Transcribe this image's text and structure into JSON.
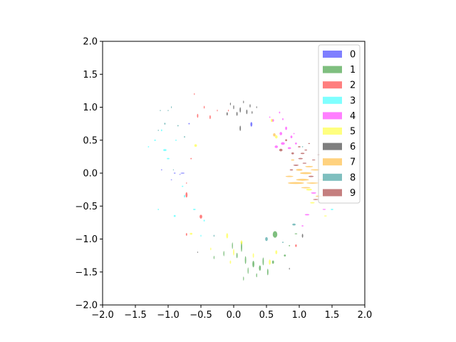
{
  "chart_data": {
    "type": "scatter",
    "title": "",
    "xlabel": "",
    "ylabel": "",
    "xlim": [
      -2.0,
      2.0
    ],
    "ylim": [
      -2.0,
      2.0
    ],
    "x_ticks": [
      "−2.0",
      "−1.5",
      "−1.0",
      "−0.5",
      "0.0",
      "0.5",
      "1.0",
      "1.5",
      "2.0"
    ],
    "y_ticks": [
      "−2.0",
      "−1.5",
      "−1.0",
      "−0.5",
      "0.0",
      "0.5",
      "1.0",
      "1.5",
      "2.0"
    ],
    "grid": false,
    "legend_position": "top-right",
    "marker": "ellipse",
    "alpha": 0.5,
    "series": [
      {
        "name": "0",
        "color": "#0000ff",
        "points": [
          [
            0.27,
            0.74,
            0.03,
            0.07
          ],
          [
            -0.78,
            0.0,
            0.06,
            0.01
          ],
          [
            -0.9,
            0.0,
            0.03,
            0.01
          ],
          [
            -0.82,
            -0.02,
            0.02,
            0.01
          ],
          [
            -0.68,
            0.75,
            0.02,
            0.02
          ],
          [
            -0.95,
            -0.1,
            0.02,
            0.01
          ],
          [
            -1.1,
            0.05,
            0.02,
            0.01
          ]
        ]
      },
      {
        "name": "1",
        "color": "#008000",
        "points": [
          [
            0.63,
            -0.93,
            0.07,
            0.1
          ],
          [
            0.12,
            -1.12,
            0.02,
            0.15
          ],
          [
            0.18,
            -1.32,
            0.02,
            0.12
          ],
          [
            0.3,
            -1.38,
            0.03,
            0.1
          ],
          [
            0.4,
            -1.44,
            0.03,
            0.08
          ],
          [
            0.45,
            -1.34,
            0.02,
            0.12
          ],
          [
            0.22,
            -1.48,
            0.015,
            0.1
          ],
          [
            -0.02,
            -1.1,
            0.015,
            0.1
          ],
          [
            0.6,
            -1.35,
            0.03,
            0.05
          ],
          [
            0.95,
            -0.92,
            0.04,
            0.01
          ],
          [
            0.85,
            -1.1,
            0.02,
            0.02
          ],
          [
            0.78,
            -1.25,
            0.03,
            0.03
          ],
          [
            0.05,
            -1.25,
            0.02,
            0.08
          ],
          [
            0.52,
            -1.5,
            0.02,
            0.1
          ],
          [
            -0.15,
            -1.22,
            0.015,
            0.08
          ],
          [
            0.35,
            -1.55,
            0.015,
            0.06
          ],
          [
            -0.3,
            -1.28,
            0.01,
            0.05
          ],
          [
            0.15,
            -1.6,
            0.01,
            0.06
          ]
        ]
      },
      {
        "name": "2",
        "color": "#ff0000",
        "points": [
          [
            -0.72,
            -0.33,
            0.03,
            0.08
          ],
          [
            -0.5,
            -0.66,
            0.04,
            0.06
          ],
          [
            -0.72,
            -0.93,
            0.02,
            0.04
          ],
          [
            -0.55,
            0.87,
            0.02,
            0.06
          ],
          [
            -0.36,
            0.85,
            0.02,
            0.06
          ],
          [
            -0.45,
            1.0,
            0.015,
            0.04
          ],
          [
            -0.65,
            0.22,
            0.02,
            0.02
          ],
          [
            0.95,
            -1.1,
            0.025,
            0.04
          ],
          [
            -0.25,
            0.95,
            0.01,
            0.03
          ],
          [
            -0.08,
            0.95,
            0.01,
            0.03
          ],
          [
            -0.6,
            1.2,
            0.01,
            0.03
          ],
          [
            -0.72,
            -0.15,
            0.015,
            0.02
          ]
        ]
      },
      {
        "name": "3",
        "color": "#00ffff",
        "points": [
          [
            -1.05,
            0.35,
            0.05,
            0.03
          ],
          [
            -1.2,
            0.5,
            0.03,
            0.02
          ],
          [
            -1.0,
            0.22,
            0.04,
            0.02
          ],
          [
            -1.3,
            0.4,
            0.02,
            0.02
          ],
          [
            -0.9,
            -0.65,
            0.03,
            0.03
          ],
          [
            -0.75,
            -0.35,
            0.02,
            0.04
          ],
          [
            -0.6,
            -0.55,
            0.04,
            0.02
          ],
          [
            -0.45,
            -0.72,
            0.02,
            0.03
          ],
          [
            -0.88,
            0.5,
            0.02,
            0.02
          ],
          [
            1.5,
            -0.55,
            0.04,
            0.02
          ],
          [
            -1.1,
            0.65,
            0.02,
            0.03
          ],
          [
            -0.78,
            -0.2,
            0.025,
            0.02
          ],
          [
            -1.15,
            -0.55,
            0.02,
            0.02
          ],
          [
            -0.5,
            -0.95,
            0.015,
            0.03
          ]
        ]
      },
      {
        "name": "4",
        "color": "#ff00ff",
        "points": [
          [
            0.75,
            0.45,
            0.06,
            0.04
          ],
          [
            0.85,
            0.38,
            0.05,
            0.03
          ],
          [
            0.72,
            0.6,
            0.04,
            0.05
          ],
          [
            0.65,
            0.4,
            0.05,
            0.04
          ],
          [
            0.8,
            0.68,
            0.03,
            0.05
          ],
          [
            0.88,
            0.55,
            0.03,
            0.04
          ],
          [
            0.95,
            0.45,
            0.03,
            0.03
          ],
          [
            1.12,
            -0.63,
            0.07,
            0.02
          ],
          [
            1.22,
            -0.3,
            0.08,
            0.02
          ],
          [
            0.6,
            0.8,
            0.03,
            0.04
          ],
          [
            0.75,
            0.82,
            0.02,
            0.03
          ],
          [
            0.7,
            0.92,
            0.02,
            0.03
          ],
          [
            1.05,
            -0.8,
            0.03,
            0.02
          ],
          [
            0.55,
            0.85,
            0.02,
            0.02
          ],
          [
            0.92,
            0.6,
            0.02,
            0.02
          ],
          [
            1.38,
            -0.55,
            0.05,
            0.015
          ]
        ]
      },
      {
        "name": "5",
        "color": "#ffff00",
        "points": [
          [
            -0.58,
            0.42,
            0.04,
            0.04
          ],
          [
            -0.1,
            -0.95,
            0.03,
            0.08
          ],
          [
            0.0,
            -1.2,
            0.02,
            0.1
          ],
          [
            0.12,
            -1.05,
            0.03,
            0.06
          ],
          [
            -0.65,
            -0.92,
            0.04,
            0.03
          ],
          [
            0.55,
            -1.35,
            0.03,
            0.08
          ],
          [
            0.65,
            -1.2,
            0.03,
            0.06
          ],
          [
            0.58,
            0.8,
            0.03,
            0.05
          ],
          [
            0.65,
            0.55,
            0.04,
            0.05
          ],
          [
            1.15,
            -0.25,
            0.09,
            0.03
          ],
          [
            1.2,
            -0.45,
            0.07,
            0.02
          ],
          [
            -0.05,
            -1.35,
            0.02,
            0.05
          ],
          [
            0.3,
            -1.25,
            0.02,
            0.07
          ],
          [
            -0.35,
            -1.15,
            0.015,
            0.04
          ],
          [
            1.4,
            -0.65,
            0.04,
            0.015
          ]
        ]
      },
      {
        "name": "6",
        "color": "#000000",
        "points": [
          [
            0.1,
            0.96,
            0.02,
            0.08
          ],
          [
            0.2,
            0.93,
            0.02,
            0.07
          ],
          [
            0.05,
            0.9,
            0.02,
            0.06
          ],
          [
            0.0,
            1.0,
            0.015,
            0.06
          ],
          [
            0.25,
            1.02,
            0.015,
            0.05
          ],
          [
            -0.1,
            0.9,
            0.02,
            0.05
          ],
          [
            0.28,
            0.92,
            0.015,
            0.04
          ],
          [
            0.1,
            0.68,
            0.02,
            0.08
          ],
          [
            1.05,
            -0.95,
            0.02,
            0.06
          ],
          [
            -0.05,
            1.05,
            0.01,
            0.04
          ],
          [
            0.15,
            1.08,
            0.01,
            0.04
          ],
          [
            0.35,
            1.0,
            0.01,
            0.03
          ],
          [
            0.85,
            -1.45,
            0.01,
            0.03
          ],
          [
            -0.55,
            -1.2,
            0.008,
            0.02
          ]
        ]
      },
      {
        "name": "7",
        "color": "#ffa500",
        "points": [
          [
            0.95,
            -0.15,
            0.25,
            0.03
          ],
          [
            1.05,
            -0.1,
            0.2,
            0.03
          ],
          [
            1.1,
            0.0,
            0.18,
            0.03
          ],
          [
            1.15,
            0.1,
            0.12,
            0.02
          ],
          [
            1.25,
            0.05,
            0.15,
            0.02
          ],
          [
            1.1,
            -0.22,
            0.14,
            0.02
          ],
          [
            1.2,
            -0.15,
            0.18,
            0.02
          ],
          [
            0.85,
            -0.05,
            0.12,
            0.02
          ],
          [
            1.0,
            0.05,
            0.1,
            0.03
          ],
          [
            0.62,
            0.58,
            0.04,
            0.05
          ],
          [
            1.3,
            -0.35,
            0.1,
            0.02
          ],
          [
            0.9,
            0.2,
            0.05,
            0.02
          ],
          [
            1.35,
            -0.1,
            0.12,
            0.015
          ]
        ]
      },
      {
        "name": "8",
        "color": "#008080",
        "points": [
          [
            -1.05,
            0.75,
            0.02,
            0.03
          ],
          [
            -0.85,
            0.72,
            0.02,
            0.02
          ],
          [
            0.5,
            -1.0,
            0.04,
            0.06
          ],
          [
            0.92,
            -0.78,
            0.05,
            0.03
          ],
          [
            -0.95,
            1.0,
            0.01,
            0.03
          ],
          [
            -1.0,
            0.95,
            0.01,
            0.02
          ],
          [
            -0.75,
            0.55,
            0.02,
            0.02
          ],
          [
            -0.3,
            -0.95,
            0.015,
            0.03
          ],
          [
            -1.12,
            0.95,
            0.008,
            0.02
          ],
          [
            -1.15,
            0.65,
            0.015,
            0.02
          ],
          [
            0.75,
            -1.05,
            0.02,
            0.02
          ],
          [
            -0.92,
            0.05,
            0.015,
            0.015
          ],
          [
            1.05,
            0.4,
            0.02,
            0.015
          ]
        ]
      },
      {
        "name": "9",
        "color": "#8b0000",
        "points": [
          [
            0.72,
            0.35,
            0.05,
            0.04
          ],
          [
            0.9,
            0.3,
            0.04,
            0.03
          ],
          [
            1.02,
            0.22,
            0.07,
            0.02
          ],
          [
            1.05,
            0.3,
            0.06,
            0.02
          ],
          [
            0.95,
            0.12,
            0.08,
            0.02
          ],
          [
            1.1,
            0.35,
            0.04,
            0.015
          ],
          [
            1.15,
            0.45,
            0.03,
            0.015
          ],
          [
            1.0,
            0.4,
            0.04,
            0.02
          ],
          [
            0.8,
            0.5,
            0.03,
            0.03
          ],
          [
            1.08,
            0.15,
            0.06,
            0.015
          ],
          [
            0.88,
            0.05,
            0.05,
            0.02
          ],
          [
            1.18,
            -0.05,
            0.08,
            0.02
          ],
          [
            1.22,
            0.2,
            0.05,
            0.012
          ],
          [
            1.25,
            -0.4,
            0.08,
            0.015
          ],
          [
            1.3,
            0.28,
            0.04,
            0.01
          ]
        ]
      }
    ]
  }
}
